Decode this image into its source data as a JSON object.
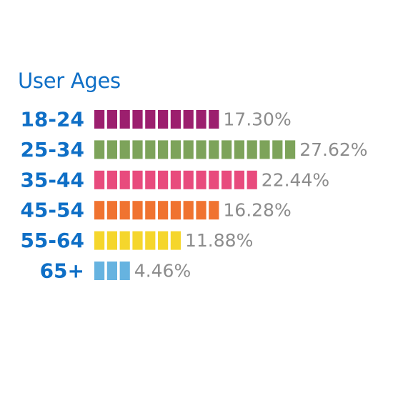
{
  "chart_data": {
    "type": "bar",
    "orientation": "horizontal",
    "title": "User Ages",
    "categories": [
      "18-24",
      "25-34",
      "35-44",
      "45-54",
      "55-64",
      "65+"
    ],
    "values": [
      17.3,
      27.62,
      22.44,
      16.28,
      11.88,
      4.46
    ],
    "value_labels": [
      "17.30%",
      "27.62%",
      "22.44%",
      "16.28%",
      "11.88%",
      "4.46%"
    ],
    "unit": "%",
    "colors": [
      "#9c1f6e",
      "#7da35a",
      "#e84b7d",
      "#f07330",
      "#f5d62c",
      "#66b3e0"
    ],
    "title_color": "#0f6fc6",
    "category_label_color": "#0f6fc6",
    "value_label_color": "#8c8c8c",
    "grid": false,
    "legend": "none"
  }
}
